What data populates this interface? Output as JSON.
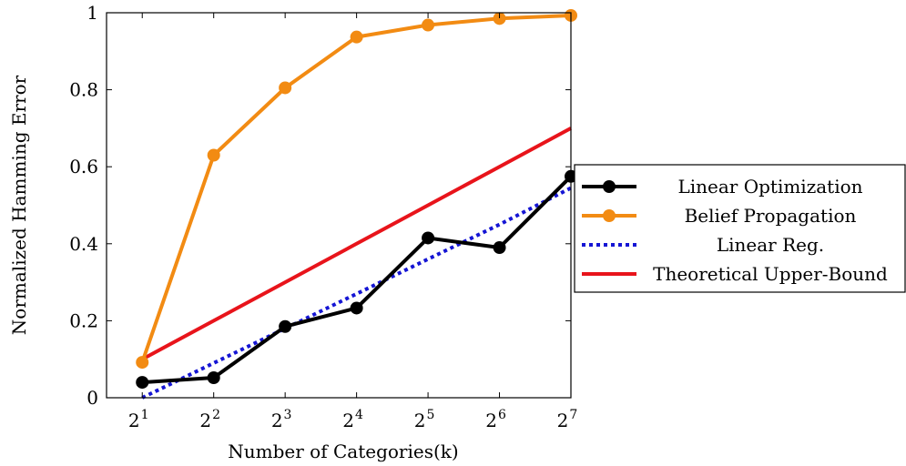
{
  "chart_data": {
    "type": "line",
    "xlabel": "Number of Categories(k)",
    "ylabel": "Normalized Hamming Error",
    "x": [
      1,
      2,
      3,
      4,
      5,
      6,
      7
    ],
    "x_tick_base": "2",
    "x_tick_exponents": [
      "1",
      "2",
      "3",
      "4",
      "5",
      "6",
      "7"
    ],
    "xlim": [
      0.5,
      7
    ],
    "ylim": [
      0,
      1
    ],
    "y_ticks": [
      0,
      0.2,
      0.4,
      0.6,
      0.8,
      1
    ],
    "y_tick_labels": [
      "0",
      "0.2",
      "0.4",
      "0.6",
      "0.8",
      "1"
    ],
    "grid": false,
    "legend_position": "right",
    "series": [
      {
        "name": "Linear Optimization",
        "color": "#000000",
        "style": "solid-markers",
        "values": [
          0.04,
          0.052,
          0.185,
          0.233,
          0.415,
          0.39,
          0.575
        ]
      },
      {
        "name": "Belief Propagation",
        "color": "#f28b13",
        "style": "solid-markers",
        "values": [
          0.092,
          0.63,
          0.805,
          0.937,
          0.968,
          0.985,
          0.993
        ]
      },
      {
        "name": "Linear Reg.",
        "color": "#1515d4",
        "style": "dotted",
        "values": [
          0.0,
          0.09,
          0.18,
          0.27,
          0.36,
          0.45,
          0.545
        ]
      },
      {
        "name": "Theoretical Upper-Bound",
        "color": "#e8141b",
        "style": "solid",
        "values": [
          0.1,
          0.2,
          0.3,
          0.4,
          0.5,
          0.6,
          0.7
        ]
      }
    ]
  }
}
